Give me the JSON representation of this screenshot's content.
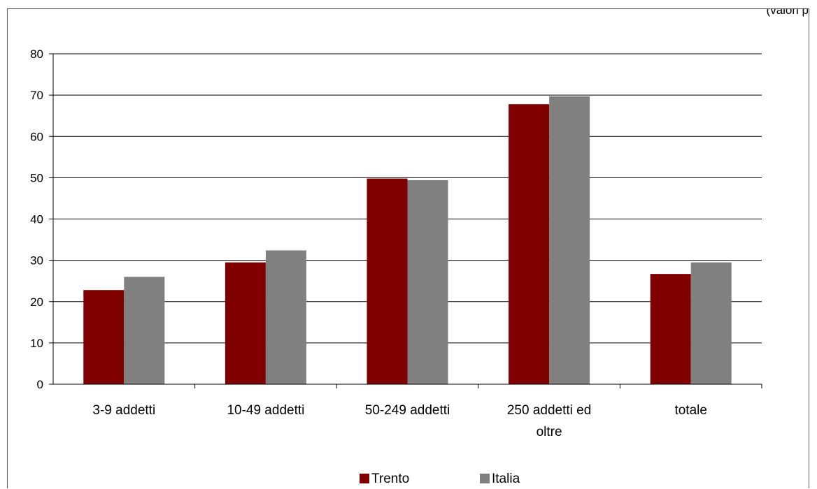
{
  "chart_data": {
    "type": "bar",
    "note": "(valori p",
    "categories": [
      "3-9 addetti",
      "10-49 addetti",
      "50-249 addetti",
      "250 addetti ed oltre",
      "totale"
    ],
    "category_lines": [
      [
        "3-9 addetti"
      ],
      [
        "10-49 addetti"
      ],
      [
        "50-249 addetti"
      ],
      [
        "250 addetti ed",
        "oltre"
      ],
      [
        "totale"
      ]
    ],
    "series": [
      {
        "name": "Trento",
        "values": [
          22.8,
          29.5,
          49.8,
          67.8,
          26.7
        ]
      },
      {
        "name": "Italia",
        "values": [
          26.0,
          32.4,
          49.4,
          69.7,
          29.5
        ]
      }
    ],
    "ylim": [
      0,
      80
    ],
    "yticks": [
      0,
      10,
      20,
      30,
      40,
      50,
      60,
      70,
      80
    ],
    "grid": true,
    "legend_position": "bottom",
    "colors": {
      "Trento": "#800000",
      "Italia": "#808080",
      "grid": "#000000",
      "axis": "#000000"
    }
  }
}
